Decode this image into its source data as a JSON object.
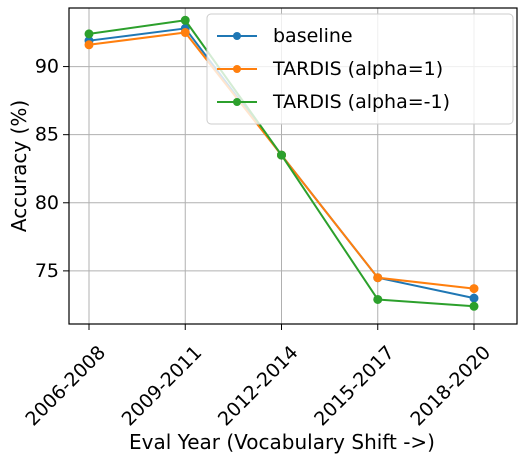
{
  "chart_data": {
    "type": "line",
    "categories": [
      "2006-2008",
      "2009-2011",
      "2012-2014",
      "2015-2017",
      "2018-2020"
    ],
    "xlabel": "Eval Year (Vocabulary Shift ->)",
    "ylabel": "Accuracy (%)",
    "ylim": [
      71.1,
      94.3
    ],
    "yticks": [
      75,
      80,
      85,
      90
    ],
    "grid": true,
    "legend_position": "top-right",
    "series": [
      {
        "name": "baseline",
        "color": "#1f77b4",
        "values": [
          91.9,
          92.8,
          83.5,
          74.5,
          73.0
        ]
      },
      {
        "name": "TARDIS (alpha=1)",
        "color": "#ff7f0e",
        "values": [
          91.6,
          92.5,
          83.5,
          74.5,
          73.7
        ]
      },
      {
        "name": "TARDIS (alpha=-1)",
        "color": "#2ca02c",
        "values": [
          92.4,
          93.4,
          83.5,
          72.9,
          72.4
        ]
      }
    ]
  }
}
